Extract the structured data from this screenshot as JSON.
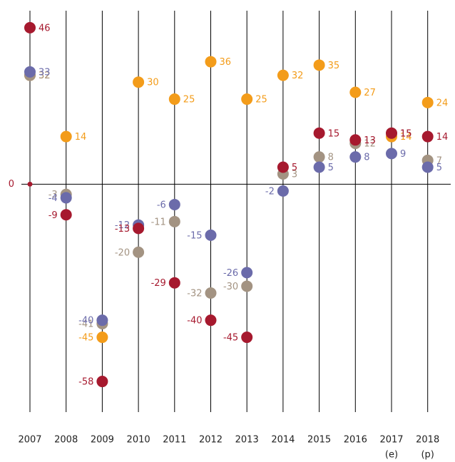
{
  "chart_data": {
    "type": "dot",
    "categories": [
      "2007",
      "2008",
      "2009",
      "2010",
      "2011",
      "2012",
      "2013",
      "2014",
      "2015",
      "2016",
      "2017",
      "2018"
    ],
    "category_notes": [
      null,
      null,
      null,
      null,
      null,
      null,
      null,
      null,
      null,
      null,
      "(e)",
      "(p)"
    ],
    "series": [
      {
        "color": "#f39c1a",
        "values": [
          32,
          14,
          -45,
          30,
          25,
          36,
          25,
          32,
          35,
          27,
          14,
          24
        ]
      },
      {
        "color": "#a39382",
        "values": [
          32,
          -3,
          -41,
          -20,
          -11,
          -32,
          -30,
          3,
          8,
          12,
          15,
          7
        ]
      },
      {
        "color": "#6b6baa",
        "values": [
          33,
          -4,
          -40,
          -12,
          -6,
          -15,
          -26,
          -2,
          5,
          8,
          9,
          5
        ]
      },
      {
        "color": "#a6192e",
        "values": [
          46,
          -9,
          -58,
          -13,
          -29,
          -40,
          -45,
          5,
          15,
          13,
          15,
          14
        ]
      }
    ],
    "ylim": [
      -67,
      51
    ],
    "yticks": [
      0
    ],
    "zero_color": "#a6192e"
  }
}
